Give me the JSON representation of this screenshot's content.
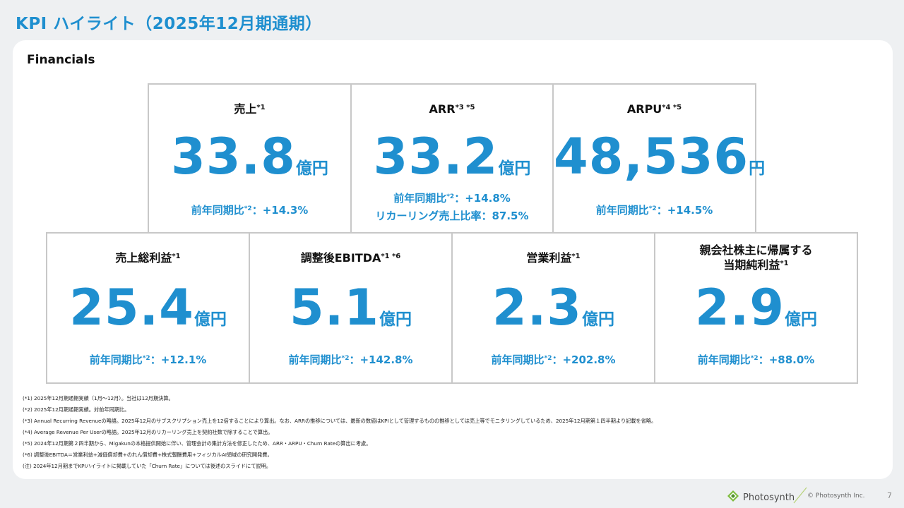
{
  "header": {
    "title": "KPI ハイライト（2025年12月期通期）"
  },
  "section": {
    "label": "Financials"
  },
  "cards": [
    {
      "title": "売上",
      "note": "*1",
      "value": "33.8",
      "unit": "億円",
      "yoy_label": "前年同期比",
      "yoy_note": "*2",
      "yoy_value": "：+14.3%"
    },
    {
      "title": "ARR",
      "note": "*3 *5",
      "value": "33.2",
      "unit": "億円",
      "yoy_label": "前年同期比",
      "yoy_note": "*2",
      "yoy_value": "：+14.8%",
      "extra": "リカーリング売上比率：87.5%"
    },
    {
      "title": "ARPU",
      "note": "*4 *5",
      "value": "48,536",
      "unit": "円",
      "yoy_label": "前年同期比",
      "yoy_note": "*2",
      "yoy_value": "：+14.5%"
    },
    {
      "title": "売上総利益",
      "note": "*1",
      "value": "25.4",
      "unit": "億円",
      "yoy_label": "前年同期比",
      "yoy_note": "*2",
      "yoy_value": "：+12.1%"
    },
    {
      "title": "調整後EBITDA",
      "note": "*1 *6",
      "value": "5.1",
      "unit": "億円",
      "yoy_label": "前年同期比",
      "yoy_note": "*2",
      "yoy_value": "：+142.8%"
    },
    {
      "title": "営業利益",
      "note": "*1",
      "value": "2.3",
      "unit": "億円",
      "yoy_label": "前年同期比",
      "yoy_note": "*2",
      "yoy_value": "：+202.8%"
    },
    {
      "title": "親会社株主に帰属する",
      "title2": "当期純利益",
      "note": "*1",
      "value": "2.9",
      "unit": "億円",
      "yoy_label": "前年同期比",
      "yoy_note": "*2",
      "yoy_value": "：+88.0%"
    }
  ],
  "footnotes": [
    "(*1) 2025年12月期通期実績（1月～12月）。当社は12月期決算。",
    "(*2) 2025年12月期通期実績。対前年同期比。",
    "(*3) Annual Recurring Revenueの略語。2025年12月のサブスクリプション売上を12倍することにより算出。なお、ARRの推移については、最新の数値はKPIとして管理するものの推移としては売上等でモニタリングしているため、2025年12月期第１四半期より記載を省略。",
    "(*4) Average Revenue Per Userの略語。2025年12月のリカーリング売上を契約社数で除することで算出。",
    "(*5) 2024年12月期第２四半期から、Migakunの本格提供開始に伴い、管理会計の集計方法を修正したため、ARR・ARPU・Churn Rateの算出に考慮。",
    "(*6) 調整後EBITDA＝営業利益+減価償却費+のれん償却費+株式報酬費用+フィジカルAI領域の研究開発費。",
    "(注) 2024年12月期までKPIハイライトに掲載していた「Churn Rate」については後述のスライドにて説明。"
  ],
  "footer": {
    "brand": "Photosynth",
    "copyright": "© Photosynth Inc.",
    "page": "7"
  },
  "colors": {
    "accent": "#1f8fcf",
    "border": "#c8c8c8",
    "background": "#eef0f2"
  },
  "icons": {
    "logo": "photosynth-logo-icon"
  }
}
